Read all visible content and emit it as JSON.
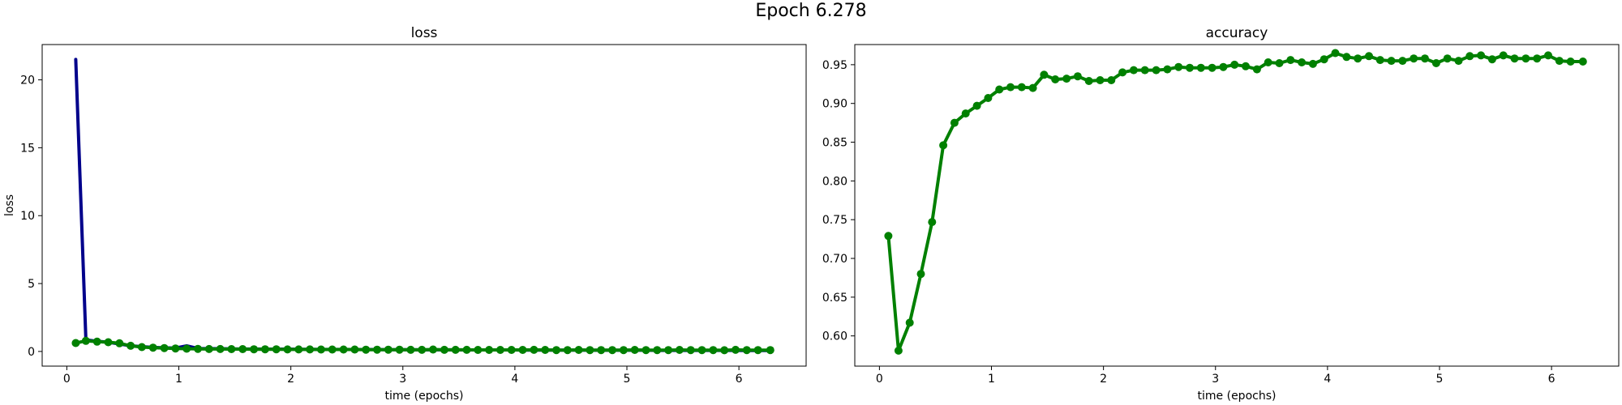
{
  "figure": {
    "suptitle": "Epoch 6.278"
  },
  "colors": {
    "train_line": "#00008b",
    "val_line": "#008000",
    "val_marker": "#008000",
    "axis": "#000000",
    "background": "#ffffff"
  },
  "chart_data": [
    {
      "type": "line",
      "title": "loss",
      "xlabel": "time (epochs)",
      "ylabel": "loss",
      "xlim": [
        -0.22,
        6.6
      ],
      "ylim": [
        -1.08,
        22.6
      ],
      "xticks": [
        0,
        1,
        2,
        3,
        4,
        5,
        6
      ],
      "yticks": [
        0,
        5,
        10,
        15,
        20
      ],
      "xtick_labels": [
        "0",
        "1",
        "2",
        "3",
        "4",
        "5",
        "6"
      ],
      "ytick_labels": [
        "0",
        "5",
        "10",
        "15",
        "20"
      ],
      "grid": false,
      "series": [
        {
          "color": "#00008b",
          "marker": "none",
          "x": [
            0.08,
            0.17,
            0.27,
            0.37,
            0.47,
            0.57,
            0.67,
            0.77,
            0.87,
            0.97,
            1.07,
            1.17,
            1.27,
            1.37,
            1.47,
            1.57,
            1.67,
            1.77,
            1.87,
            1.97,
            2.07,
            2.17,
            2.27,
            2.37,
            2.47,
            2.57,
            2.67,
            2.77,
            2.87,
            2.97,
            3.07,
            3.17,
            3.27,
            3.37,
            3.47,
            3.57,
            3.67,
            3.77,
            3.87,
            3.97,
            4.07,
            4.17,
            4.27,
            4.37,
            4.47,
            4.57,
            4.67,
            4.77,
            4.87,
            4.97,
            5.07,
            5.17,
            5.27,
            5.37,
            5.47,
            5.57,
            5.67,
            5.77,
            5.87,
            5.97,
            6.07,
            6.17,
            6.28
          ],
          "y": [
            21.5,
            0.85,
            0.75,
            0.68,
            0.55,
            0.42,
            0.35,
            0.3,
            0.27,
            0.25,
            0.42,
            0.22,
            0.21,
            0.2,
            0.19,
            0.18,
            0.18,
            0.17,
            0.17,
            0.17,
            0.16,
            0.16,
            0.15,
            0.15,
            0.15,
            0.14,
            0.14,
            0.14,
            0.13,
            0.13,
            0.13,
            0.12,
            0.12,
            0.12,
            0.12,
            0.11,
            0.11,
            0.11,
            0.11,
            0.11,
            0.1,
            0.1,
            0.1,
            0.1,
            0.1,
            0.1,
            0.09,
            0.09,
            0.09,
            0.09,
            0.09,
            0.09,
            0.08,
            0.08,
            0.08,
            0.08,
            0.08,
            0.08,
            0.08,
            0.08,
            0.07,
            0.07,
            0.07
          ]
        },
        {
          "color": "#008000",
          "marker": "o",
          "x": [
            0.08,
            0.17,
            0.27,
            0.37,
            0.47,
            0.57,
            0.67,
            0.77,
            0.87,
            0.97,
            1.07,
            1.17,
            1.27,
            1.37,
            1.47,
            1.57,
            1.67,
            1.77,
            1.87,
            1.97,
            2.07,
            2.17,
            2.27,
            2.37,
            2.47,
            2.57,
            2.67,
            2.77,
            2.87,
            2.97,
            3.07,
            3.17,
            3.27,
            3.37,
            3.47,
            3.57,
            3.67,
            3.77,
            3.87,
            3.97,
            4.07,
            4.17,
            4.27,
            4.37,
            4.47,
            4.57,
            4.67,
            4.77,
            4.87,
            4.97,
            5.07,
            5.17,
            5.27,
            5.37,
            5.47,
            5.57,
            5.67,
            5.77,
            5.87,
            5.97,
            6.07,
            6.17,
            6.28
          ],
          "y": [
            0.62,
            0.78,
            0.72,
            0.68,
            0.6,
            0.42,
            0.32,
            0.28,
            0.25,
            0.22,
            0.2,
            0.19,
            0.18,
            0.18,
            0.17,
            0.17,
            0.16,
            0.16,
            0.16,
            0.15,
            0.15,
            0.15,
            0.14,
            0.14,
            0.14,
            0.14,
            0.13,
            0.13,
            0.13,
            0.13,
            0.12,
            0.12,
            0.14,
            0.12,
            0.12,
            0.12,
            0.11,
            0.11,
            0.11,
            0.11,
            0.11,
            0.12,
            0.11,
            0.1,
            0.1,
            0.11,
            0.1,
            0.1,
            0.1,
            0.1,
            0.11,
            0.1,
            0.1,
            0.1,
            0.11,
            0.1,
            0.1,
            0.1,
            0.09,
            0.12,
            0.1,
            0.1,
            0.1
          ]
        }
      ]
    },
    {
      "type": "line",
      "title": "accuracy",
      "xlabel": "time (epochs)",
      "ylabel": "",
      "xlim": [
        -0.22,
        6.6
      ],
      "ylim": [
        0.561,
        0.976
      ],
      "xticks": [
        0,
        1,
        2,
        3,
        4,
        5,
        6
      ],
      "yticks": [
        0.6,
        0.65,
        0.7,
        0.75,
        0.8,
        0.85,
        0.9,
        0.95
      ],
      "xtick_labels": [
        "0",
        "1",
        "2",
        "3",
        "4",
        "5",
        "6"
      ],
      "ytick_labels": [
        "0.60",
        "0.65",
        "0.70",
        "0.75",
        "0.80",
        "0.85",
        "0.90",
        "0.95"
      ],
      "grid": false,
      "series": [
        {
          "color": "#008000",
          "marker": "o",
          "x": [
            0.08,
            0.17,
            0.27,
            0.37,
            0.47,
            0.57,
            0.67,
            0.77,
            0.87,
            0.97,
            1.07,
            1.17,
            1.27,
            1.37,
            1.47,
            1.57,
            1.67,
            1.77,
            1.87,
            1.97,
            2.07,
            2.17,
            2.27,
            2.37,
            2.47,
            2.57,
            2.67,
            2.77,
            2.87,
            2.97,
            3.07,
            3.17,
            3.27,
            3.37,
            3.47,
            3.57,
            3.67,
            3.77,
            3.87,
            3.97,
            4.07,
            4.17,
            4.27,
            4.37,
            4.47,
            4.57,
            4.67,
            4.77,
            4.87,
            4.97,
            5.07,
            5.17,
            5.27,
            5.37,
            5.47,
            5.57,
            5.67,
            5.77,
            5.87,
            5.97,
            6.07,
            6.17,
            6.28
          ],
          "y": [
            0.729,
            0.581,
            0.617,
            0.68,
            0.747,
            0.846,
            0.875,
            0.887,
            0.897,
            0.907,
            0.918,
            0.921,
            0.921,
            0.92,
            0.937,
            0.931,
            0.932,
            0.935,
            0.929,
            0.93,
            0.93,
            0.94,
            0.943,
            0.943,
            0.943,
            0.944,
            0.947,
            0.946,
            0.946,
            0.946,
            0.947,
            0.95,
            0.948,
            0.944,
            0.953,
            0.952,
            0.956,
            0.953,
            0.951,
            0.957,
            0.965,
            0.96,
            0.958,
            0.961,
            0.956,
            0.955,
            0.955,
            0.958,
            0.958,
            0.952,
            0.958,
            0.955,
            0.961,
            0.962,
            0.957,
            0.962,
            0.958,
            0.958,
            0.958,
            0.962,
            0.955,
            0.954,
            0.954
          ]
        }
      ]
    }
  ]
}
